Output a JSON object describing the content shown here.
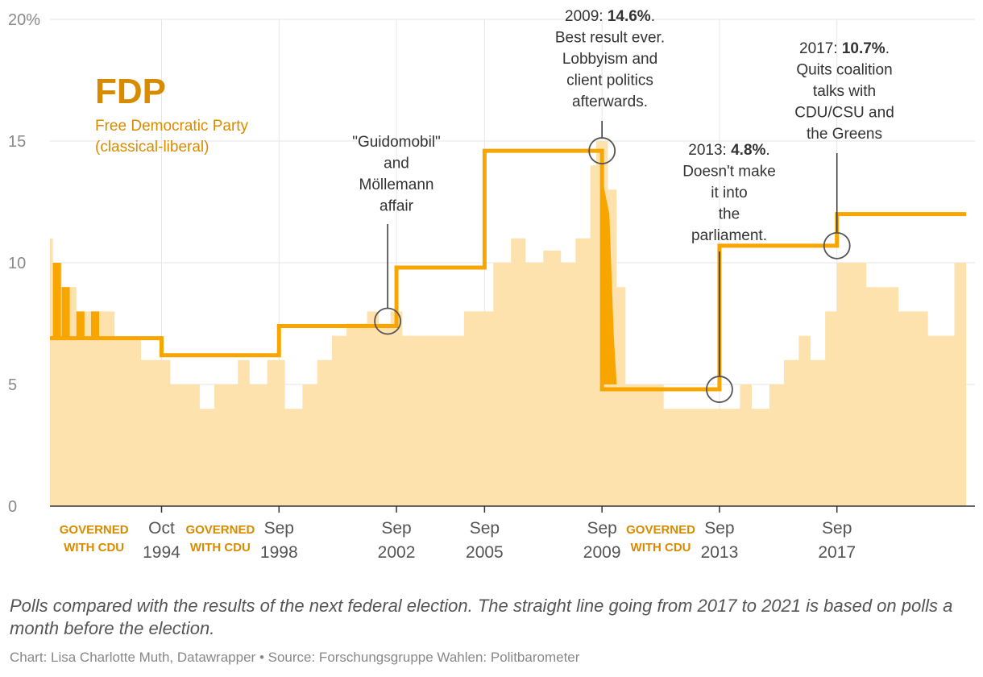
{
  "colors": {
    "party": "#f8a500",
    "party_dark": "#d98b00",
    "poll_light": "#fde2ad",
    "axis": "#333333",
    "grid": "#e6e6e6",
    "tick_text": "#8a8a8a",
    "annotation": "#333333",
    "circle": "#555555"
  },
  "chart_data": {
    "type": "line",
    "title": "FDP",
    "subtitle_lines": [
      "Free Democratic Party",
      "(classical-liberal)"
    ],
    "xlabel": "",
    "ylabel": "",
    "ylim": [
      0,
      20
    ],
    "xlim": [
      1990.4,
      2021.9
    ],
    "y_ticks": [
      {
        "value": 20,
        "label": "20%"
      },
      {
        "value": 15,
        "label": "15"
      },
      {
        "value": 10,
        "label": "10"
      },
      {
        "value": 5,
        "label": "5"
      },
      {
        "value": 0,
        "label": "0"
      }
    ],
    "x_ticks": [
      {
        "year": 1994.2,
        "label": [
          "Oct",
          "1994"
        ]
      },
      {
        "year": 1998.2,
        "label": [
          "Sep",
          "1998"
        ]
      },
      {
        "year": 2002.2,
        "label": [
          "Sep",
          "2002"
        ]
      },
      {
        "year": 2005.2,
        "label": [
          "Sep",
          "2005"
        ]
      },
      {
        "year": 2009.2,
        "label": [
          "Sep",
          "2009"
        ]
      },
      {
        "year": 2013.2,
        "label": [
          "Sep",
          "2013"
        ]
      },
      {
        "year": 2017.2,
        "label": [
          "Sep",
          "2017"
        ]
      }
    ],
    "government_labels": [
      {
        "year": 1991.9,
        "lines": [
          "GOVERNED",
          "WITH CDU"
        ]
      },
      {
        "year": 1996.2,
        "lines": [
          "GOVERNED",
          "WITH CDU"
        ]
      },
      {
        "year": 2011.2,
        "lines": [
          "GOVERNED",
          "WITH CDU"
        ]
      }
    ],
    "series": [
      {
        "name": "Result of next federal election",
        "points": [
          [
            1990.4,
            6.9
          ],
          [
            1994.2,
            6.9
          ],
          [
            1994.2,
            6.2
          ],
          [
            1998.2,
            6.2
          ],
          [
            1998.2,
            7.4
          ],
          [
            2002.2,
            7.4
          ],
          [
            2002.2,
            9.8
          ],
          [
            2005.2,
            9.8
          ],
          [
            2005.2,
            14.6
          ],
          [
            2009.2,
            14.6
          ],
          [
            2009.2,
            4.8
          ],
          [
            2013.2,
            4.8
          ],
          [
            2013.2,
            10.7
          ],
          [
            2017.2,
            10.7
          ],
          [
            2017.2,
            12.0
          ],
          [
            2021.6,
            12.0
          ]
        ]
      },
      {
        "name": "Polls",
        "points": [
          [
            1990.4,
            11.0
          ],
          [
            1990.5,
            10.0
          ],
          [
            1990.8,
            9.0
          ],
          [
            1991.3,
            8.0
          ],
          [
            1991.8,
            8.0
          ],
          [
            1992.3,
            8.0
          ],
          [
            1992.6,
            6.9
          ],
          [
            1993.0,
            6.9
          ],
          [
            1993.5,
            6.0
          ],
          [
            1994.0,
            6.0
          ],
          [
            1994.5,
            5.0
          ],
          [
            1995.0,
            5.0
          ],
          [
            1995.5,
            4.0
          ],
          [
            1996.0,
            5.0
          ],
          [
            1996.8,
            6.0
          ],
          [
            1997.2,
            5.0
          ],
          [
            1997.8,
            6.0
          ],
          [
            1998.4,
            4.0
          ],
          [
            1999.0,
            5.0
          ],
          [
            1999.5,
            6.0
          ],
          [
            2000.0,
            7.0
          ],
          [
            2000.5,
            7.5
          ],
          [
            2001.2,
            8.0
          ],
          [
            2001.6,
            7.5
          ],
          [
            2002.0,
            8.0
          ],
          [
            2002.4,
            7.0
          ],
          [
            2002.9,
            7.0
          ],
          [
            2003.4,
            7.0
          ],
          [
            2004.0,
            7.0
          ],
          [
            2004.5,
            8.0
          ],
          [
            2005.0,
            8.0
          ],
          [
            2005.5,
            10.0
          ],
          [
            2006.1,
            11.0
          ],
          [
            2006.6,
            10.0
          ],
          [
            2007.2,
            10.5
          ],
          [
            2007.8,
            10.0
          ],
          [
            2008.3,
            11.0
          ],
          [
            2008.8,
            14.0
          ],
          [
            2009.0,
            15.0
          ],
          [
            2009.4,
            13.0
          ],
          [
            2009.7,
            9.0
          ],
          [
            2010.0,
            5.0
          ],
          [
            2010.6,
            5.0
          ],
          [
            2011.3,
            4.0
          ],
          [
            2011.8,
            4.0
          ],
          [
            2012.2,
            4.0
          ],
          [
            2012.8,
            4.0
          ],
          [
            2013.4,
            4.0
          ],
          [
            2013.9,
            5.0
          ],
          [
            2014.3,
            4.0
          ],
          [
            2014.9,
            5.0
          ],
          [
            2015.4,
            6.0
          ],
          [
            2015.9,
            7.0
          ],
          [
            2016.3,
            6.0
          ],
          [
            2016.8,
            8.0
          ],
          [
            2017.2,
            10.0
          ],
          [
            2017.6,
            10.0
          ],
          [
            2018.2,
            9.0
          ],
          [
            2018.8,
            9.0
          ],
          [
            2019.3,
            8.0
          ],
          [
            2019.8,
            8.0
          ],
          [
            2020.3,
            7.0
          ],
          [
            2020.8,
            7.0
          ],
          [
            2021.2,
            10.0
          ],
          [
            2021.6,
            12.0
          ]
        ]
      }
    ],
    "annotations": [
      {
        "name": "guidomobil",
        "year": 2001.9,
        "value": 7.6,
        "lines": [
          [
            "\"Guidomobil\""
          ],
          [
            "and"
          ],
          [
            "Möllemann"
          ],
          [
            "affair"
          ]
        ]
      },
      {
        "name": "best-result",
        "year": 2009.2,
        "value": 14.6,
        "lines": [
          [
            "2009: ",
            "14.6%",
            "."
          ],
          [
            "Best result ever."
          ],
          [
            "Lobbyism and"
          ],
          [
            "client politics"
          ],
          [
            "afterwards."
          ]
        ]
      },
      {
        "name": "out-of-parliament",
        "year": 2013.2,
        "value": 4.8,
        "lines": [
          [
            "2013: ",
            "4.8%",
            "."
          ],
          [
            "Doesn't make"
          ],
          [
            "it into"
          ],
          [
            "the"
          ],
          [
            "parliament."
          ]
        ]
      },
      {
        "name": "quits-coalition-talks",
        "year": 2017.2,
        "value": 10.7,
        "lines": [
          [
            "2017: ",
            "10.7%",
            "."
          ],
          [
            "Quits coalition"
          ],
          [
            "talks with"
          ],
          [
            "CDU/CSU and"
          ],
          [
            "the Greens"
          ]
        ]
      }
    ]
  },
  "notes": "Polls compared with the results of the next federal election. The straight line going from 2017 to 2021 is based on polls a month before the election.",
  "credit": {
    "chart_by": "Chart: Lisa Charlotte Muth, Datawrapper",
    "separator": "•",
    "source": "Source: Forschungsgruppe Wahlen: Politbarometer"
  }
}
